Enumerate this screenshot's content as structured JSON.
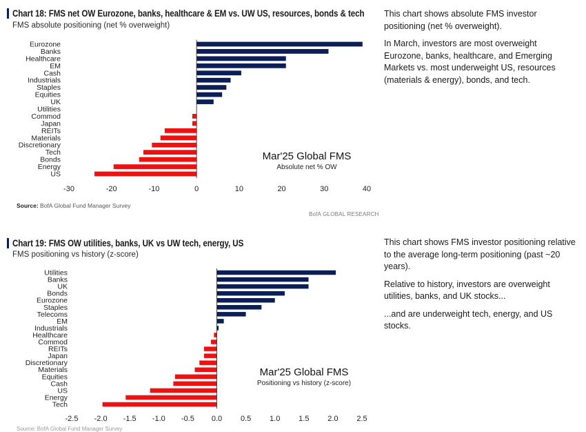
{
  "charts": [
    {
      "title": "Chart 18: FMS net OW Eurozone, banks, healthcare & EM vs. UW US, resources, bonds & tech",
      "subtitle": "FMS absolute positioning (net % overweight)",
      "source_label": "Source:",
      "source_text": "BofA Global Fund Manager Survey",
      "brand": "BofA GLOBAL RESEARCH",
      "description": [
        "This chart shows absolute FMS investor positioning (net % overweight).",
        "In March, investors are most overweight Eurozone, banks, healthcare, and Emerging Markets vs. most underweight US, resources (materials & energy), bonds, and tech."
      ]
    },
    {
      "title": "Chart 19: FMS OW utilities, banks, UK vs UW tech, energy, US",
      "subtitle": "FMS positioning vs history (z-score)",
      "source_fragment": "Source: BofA Global Fund Manager Survey",
      "description": [
        "This chart shows FMS investor positioning relative to the average long-term positioning (past ~20 years).",
        "Relative to history, investors are overweight utilities, banks, and UK stocks...",
        "...and are underweight tech, energy, and US stocks."
      ]
    }
  ],
  "colors": {
    "positive": "#0b1f56",
    "negative": "#ee1111",
    "axis": "#333333"
  },
  "chart_data": [
    {
      "type": "bar",
      "orientation": "horizontal",
      "title": "Chart 18: FMS net OW Eurozone, banks, healthcare & EM vs. UW US, resources, bonds & tech",
      "annotation_title": "Mar'25 Global FMS",
      "annotation_subtitle": "Absolute net % OW",
      "categories": [
        "Eurozone",
        "Banks",
        "Healthcare",
        "EM",
        "Cash",
        "Industrials",
        "Staples",
        "Equities",
        "UK",
        "Utilities",
        "Commod",
        "Japan",
        "REITs",
        "Materials",
        "Discretionary",
        "Tech",
        "Bonds",
        "Energy",
        "US"
      ],
      "values": [
        39,
        31,
        21,
        21,
        10.5,
        8,
        7,
        6,
        4,
        0,
        -1,
        -1,
        -7.5,
        -8.5,
        -10.5,
        -12.5,
        -13.5,
        -19.5,
        -24
      ],
      "xlim": [
        -30,
        40
      ],
      "xticks": [
        -30,
        -20,
        -10,
        0,
        10,
        20,
        30,
        40
      ],
      "xtick_labels": [
        "-30",
        "-20",
        "-10",
        "0",
        "10",
        "20",
        "30",
        "40"
      ],
      "xlabel": "",
      "ylabel": ""
    },
    {
      "type": "bar",
      "orientation": "horizontal",
      "title": "Chart 19: FMS OW utilities, banks, UK vs UW tech, energy, US",
      "annotation_title": "Mar'25 Global FMS",
      "annotation_subtitle": "Positioning vs history (z-score)",
      "categories": [
        "Utilities",
        "Banks",
        "UK",
        "Bonds",
        "Eurozone",
        "Staples",
        "Telecoms",
        "EM",
        "Industrials",
        "Healthcare",
        "Commod",
        "REITs",
        "Japan",
        "Discretionary",
        "Materials",
        "Equities",
        "Cash",
        "US",
        "Energy",
        "Tech"
      ],
      "values": [
        2.05,
        1.58,
        1.58,
        1.17,
        1.0,
        0.77,
        0.5,
        0.12,
        0.03,
        -0.05,
        -0.1,
        -0.22,
        -0.22,
        -0.3,
        -0.38,
        -0.72,
        -0.75,
        -1.15,
        -1.57,
        -1.97
      ],
      "xlim": [
        -2.5,
        2.5
      ],
      "xticks": [
        -2.5,
        -2.0,
        -1.5,
        -1.0,
        -0.5,
        0.0,
        0.5,
        1.0,
        1.5,
        2.0,
        2.5
      ],
      "xtick_labels": [
        "-2.5",
        "-2.0",
        "-1.5",
        "-1.0",
        "-0.5",
        "0.0",
        "0.5",
        "1.0",
        "1.5",
        "2.0",
        "2.5"
      ],
      "xlabel": "",
      "ylabel": ""
    }
  ]
}
